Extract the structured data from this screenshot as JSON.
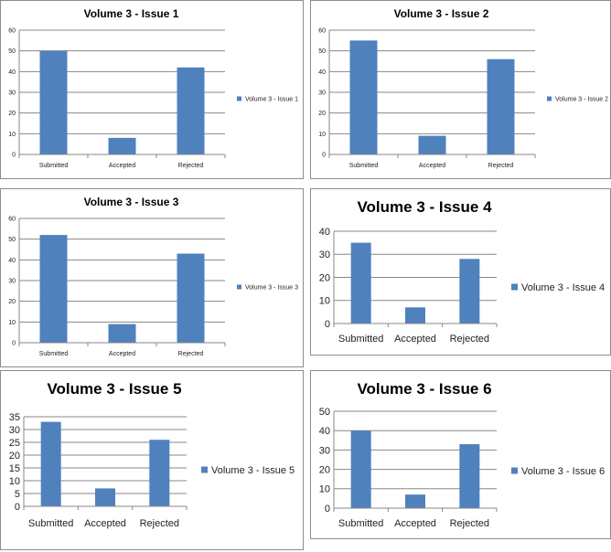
{
  "colors": {
    "bar": "#4f81bd",
    "grid": "#878787",
    "axis": "#878787"
  },
  "chart_data": [
    {
      "type": "bar",
      "title": "Volume 3 - Issue 1",
      "categories": [
        "Submitted",
        "Accepted",
        "Rejected"
      ],
      "series": [
        {
          "name": "Volume 3 - Issue 1",
          "values": [
            50,
            8,
            42
          ]
        }
      ],
      "ylim": [
        0,
        60
      ],
      "yticks": [
        0,
        10,
        20,
        30,
        40,
        50,
        60
      ],
      "legend": "right",
      "grid": true
    },
    {
      "type": "bar",
      "title": "Volume 3 - Issue 2",
      "categories": [
        "Submitted",
        "Accepted",
        "Rejected"
      ],
      "series": [
        {
          "name": "Volume 3 - Issue 2",
          "values": [
            55,
            9,
            46
          ]
        }
      ],
      "ylim": [
        0,
        60
      ],
      "yticks": [
        0,
        10,
        20,
        30,
        40,
        50,
        60
      ],
      "legend": "right",
      "grid": true
    },
    {
      "type": "bar",
      "title": "Volume 3 - Issue 3",
      "categories": [
        "Submitted",
        "Accepted",
        "Rejected"
      ],
      "series": [
        {
          "name": "Volume 3 - Issue 3",
          "values": [
            52,
            9,
            43
          ]
        }
      ],
      "ylim": [
        0,
        60
      ],
      "yticks": [
        0,
        10,
        20,
        30,
        40,
        50,
        60
      ],
      "legend": "right",
      "grid": true
    },
    {
      "type": "bar",
      "title": "Volume 3 - Issue 4",
      "categories": [
        "Submitted",
        "Accepted",
        "Rejected"
      ],
      "series": [
        {
          "name": "Volume 3 - Issue 4",
          "values": [
            35,
            7,
            28
          ]
        }
      ],
      "ylim": [
        0,
        40
      ],
      "yticks": [
        0,
        10,
        20,
        30,
        40
      ],
      "legend": "right",
      "grid": true
    },
    {
      "type": "bar",
      "title": "Volume 3 - Issue 5",
      "categories": [
        "Submitted",
        "Accepted",
        "Rejected"
      ],
      "series": [
        {
          "name": "Volume 3 - Issue 5",
          "values": [
            33,
            7,
            26
          ]
        }
      ],
      "ylim": [
        0,
        35
      ],
      "yticks": [
        0,
        5,
        10,
        15,
        20,
        25,
        30,
        35
      ],
      "legend": "right",
      "grid": true
    },
    {
      "type": "bar",
      "title": "Volume 3 - Issue 6",
      "categories": [
        "Submitted",
        "Accepted",
        "Rejected"
      ],
      "series": [
        {
          "name": "Volume 3 - Issue 6",
          "values": [
            40,
            7,
            33
          ]
        }
      ],
      "ylim": [
        0,
        50
      ],
      "yticks": [
        0,
        10,
        20,
        30,
        40,
        50
      ],
      "legend": "right",
      "grid": true
    }
  ]
}
